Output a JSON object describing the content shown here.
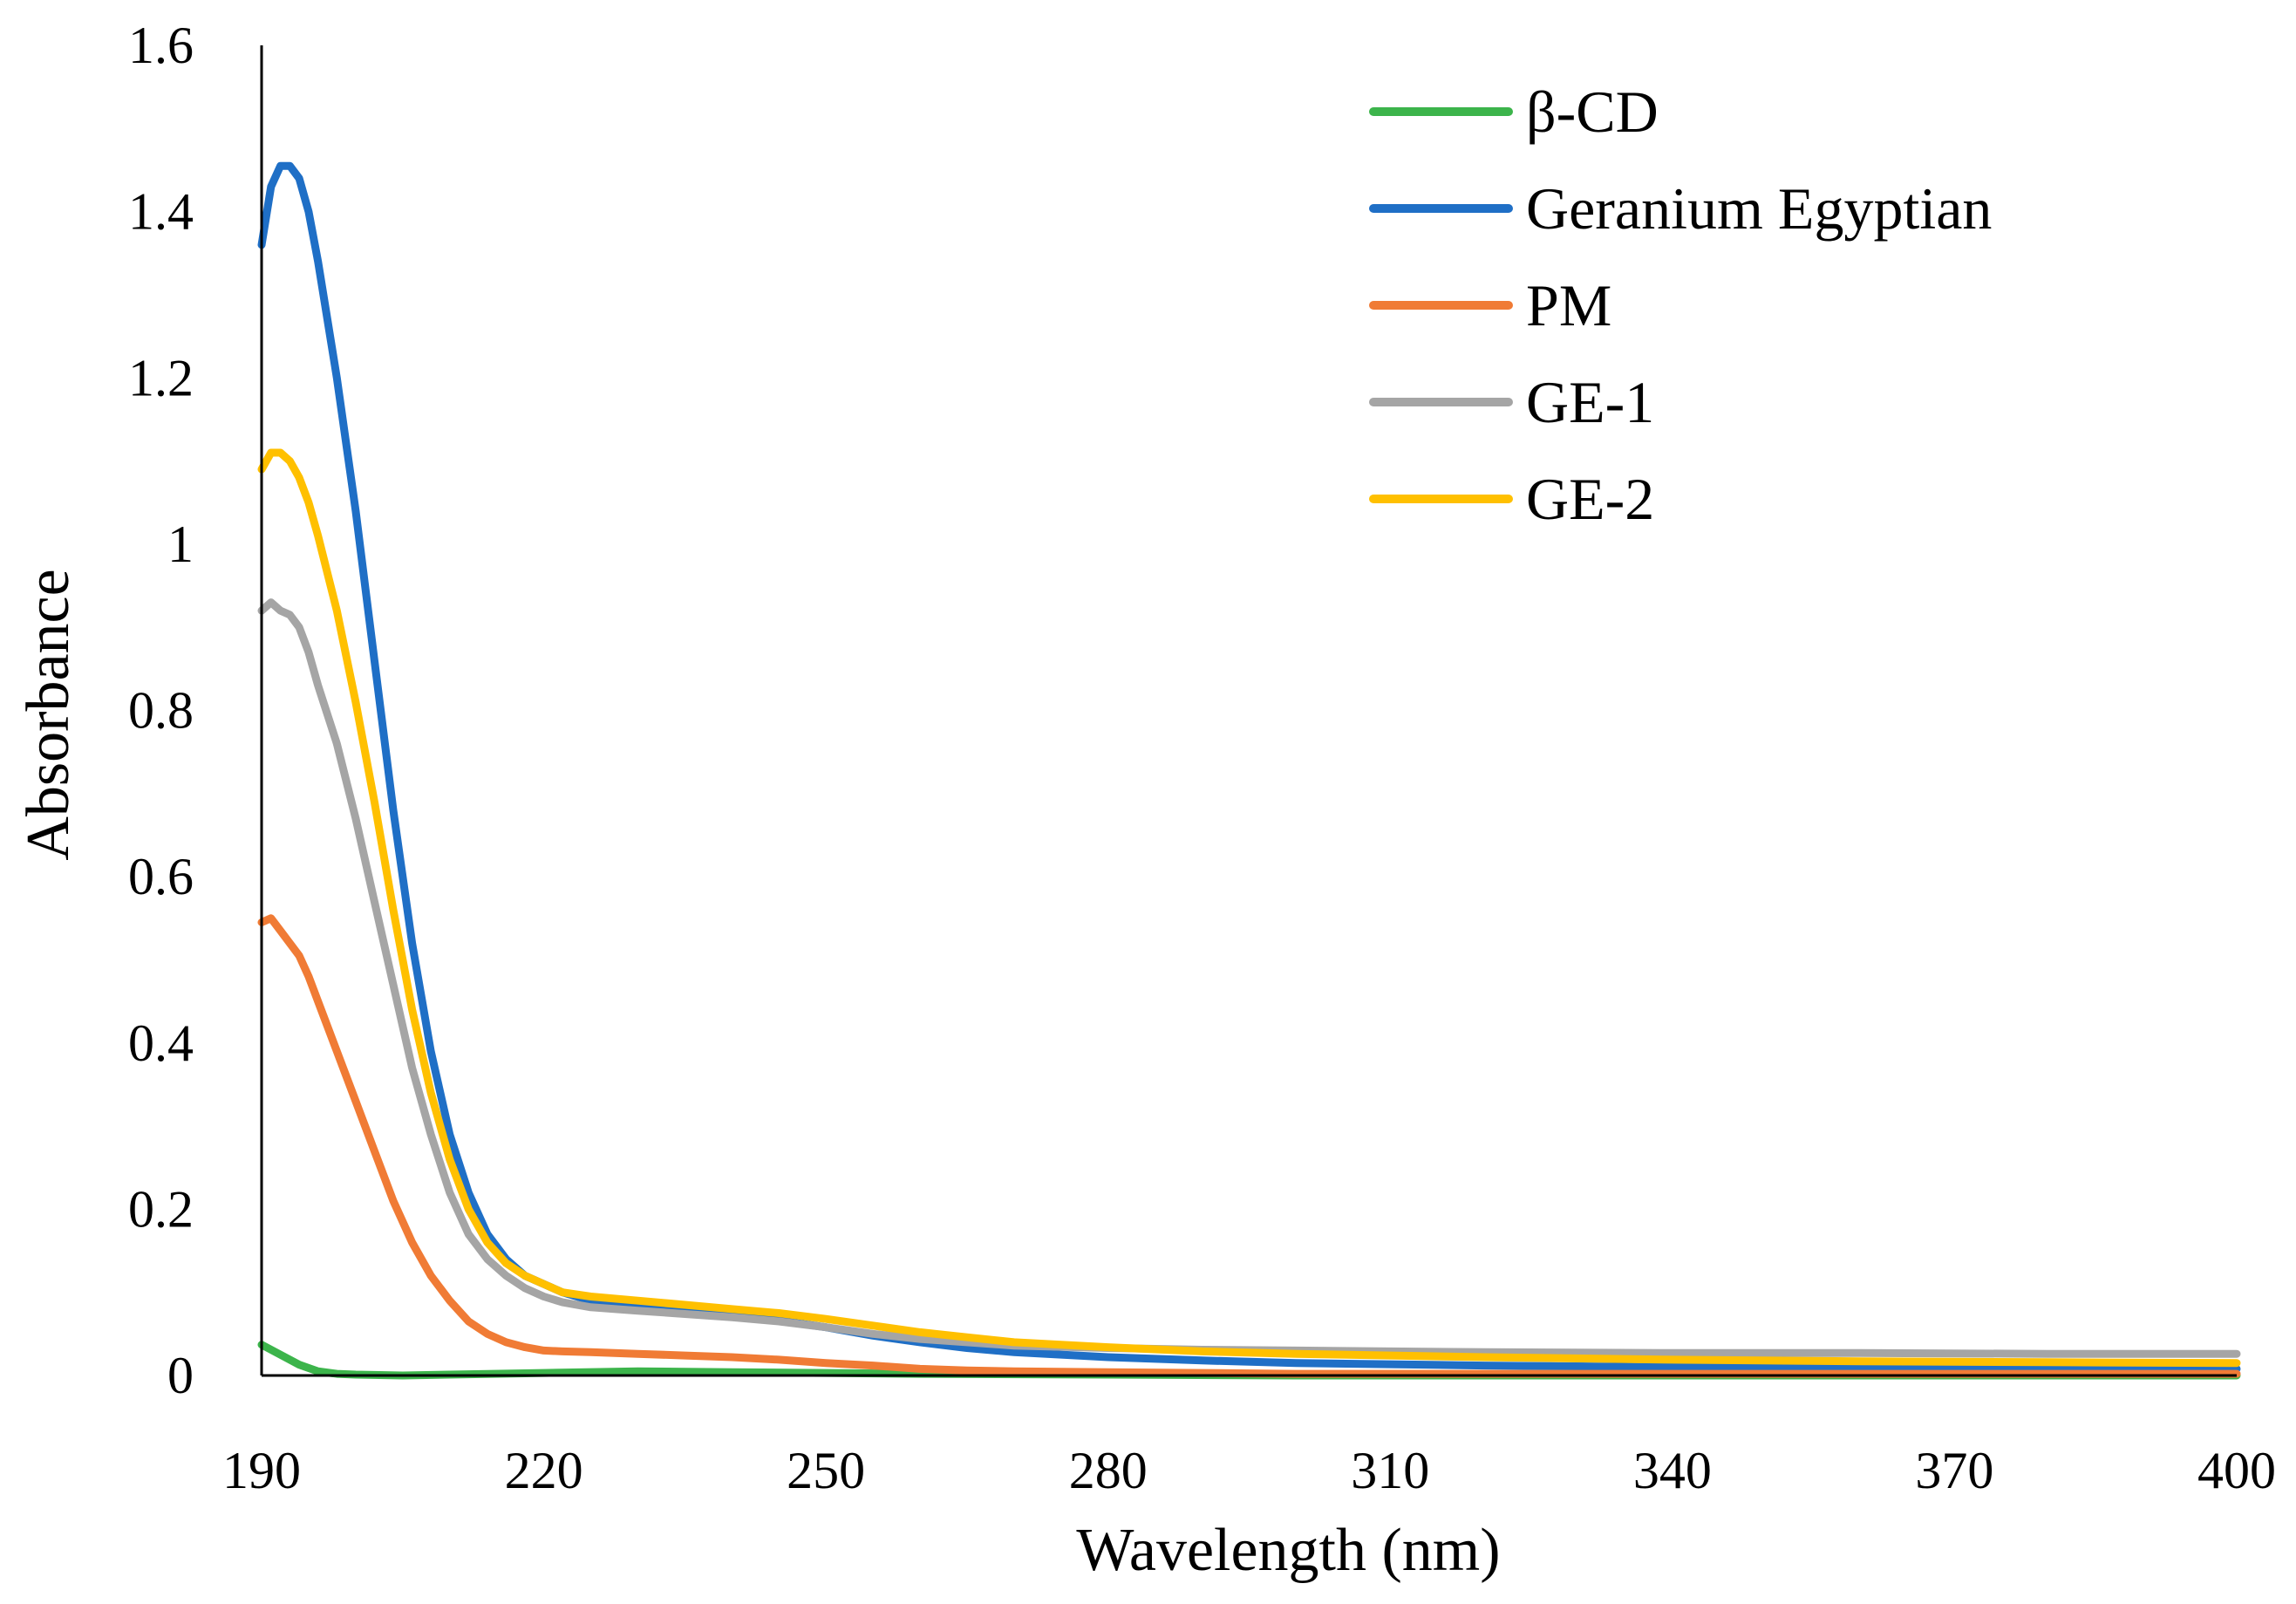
{
  "chart_data": {
    "type": "line",
    "title": "",
    "xlabel": "Wavelength (nm)",
    "ylabel": "Absorbance",
    "xlim": [
      190,
      400
    ],
    "ylim": [
      0,
      1.6
    ],
    "x_ticks": [
      "190",
      "220",
      "250",
      "280",
      "310",
      "340",
      "370",
      "400"
    ],
    "y_ticks": [
      "0",
      "0.2",
      "0.4",
      "0.6",
      "0.8",
      "1",
      "1.2",
      "1.4",
      "1.6"
    ],
    "grid": false,
    "legend_position": "top-right",
    "series": [
      {
        "name": "β-CD",
        "color": "#3cb44b",
        "x": [
          190,
          192,
          194,
          196,
          198,
          200,
          205,
          210,
          220,
          230,
          240,
          250,
          260,
          280,
          300,
          330,
          360,
          400
        ],
        "y": [
          0.037,
          0.025,
          0.013,
          0.005,
          0.002,
          0.001,
          0.0,
          0.001,
          0.003,
          0.005,
          0.004,
          0.003,
          0.002,
          0.001,
          0.0,
          0.0,
          0.0,
          0.0
        ]
      },
      {
        "name": "Geranium Egyptian",
        "color": "#1f6fc6",
        "x": [
          190,
          191,
          192,
          193,
          194,
          195,
          196,
          198,
          200,
          202,
          204,
          206,
          208,
          210,
          212,
          214,
          216,
          218,
          220,
          222,
          225,
          230,
          235,
          240,
          245,
          250,
          255,
          260,
          265,
          270,
          280,
          290,
          300,
          320,
          340,
          360,
          380,
          400
        ],
        "y": [
          1.36,
          1.43,
          1.455,
          1.455,
          1.44,
          1.4,
          1.34,
          1.2,
          1.04,
          0.86,
          0.68,
          0.52,
          0.39,
          0.29,
          0.22,
          0.17,
          0.14,
          0.12,
          0.11,
          0.1,
          0.09,
          0.082,
          0.078,
          0.072,
          0.066,
          0.058,
          0.048,
          0.04,
          0.033,
          0.028,
          0.022,
          0.018,
          0.015,
          0.012,
          0.01,
          0.009,
          0.008,
          0.008
        ]
      },
      {
        "name": "PM",
        "color": "#f07b35",
        "x": [
          190,
          191,
          192,
          193,
          194,
          195,
          196,
          198,
          200,
          202,
          204,
          206,
          208,
          210,
          212,
          214,
          216,
          218,
          220,
          222,
          225,
          230,
          235,
          240,
          245,
          250,
          255,
          260,
          265,
          270,
          280,
          290,
          300,
          320,
          340,
          360,
          380,
          400
        ],
        "y": [
          0.545,
          0.55,
          0.535,
          0.52,
          0.505,
          0.48,
          0.45,
          0.39,
          0.33,
          0.27,
          0.21,
          0.16,
          0.12,
          0.09,
          0.065,
          0.05,
          0.04,
          0.034,
          0.03,
          0.029,
          0.028,
          0.026,
          0.024,
          0.022,
          0.019,
          0.015,
          0.012,
          0.008,
          0.006,
          0.005,
          0.004,
          0.003,
          0.002,
          0.002,
          0.002,
          0.002,
          0.002,
          0.002
        ]
      },
      {
        "name": "GE-1",
        "color": "#a5a5a5",
        "x": [
          190,
          191,
          192,
          193,
          194,
          195,
          196,
          198,
          200,
          202,
          204,
          206,
          208,
          210,
          212,
          214,
          216,
          218,
          220,
          222,
          225,
          230,
          235,
          240,
          245,
          250,
          255,
          260,
          265,
          270,
          280,
          290,
          300,
          320,
          340,
          360,
          380,
          400
        ],
        "y": [
          0.92,
          0.93,
          0.92,
          0.915,
          0.9,
          0.87,
          0.83,
          0.76,
          0.67,
          0.57,
          0.47,
          0.37,
          0.29,
          0.22,
          0.17,
          0.14,
          0.12,
          0.105,
          0.095,
          0.088,
          0.082,
          0.078,
          0.074,
          0.07,
          0.065,
          0.058,
          0.05,
          0.044,
          0.04,
          0.036,
          0.033,
          0.031,
          0.03,
          0.028,
          0.027,
          0.027,
          0.026,
          0.026
        ]
      },
      {
        "name": "GE-2",
        "color": "#ffc000",
        "x": [
          190,
          191,
          192,
          193,
          194,
          195,
          196,
          198,
          200,
          202,
          204,
          206,
          208,
          210,
          212,
          214,
          216,
          218,
          220,
          222,
          225,
          230,
          235,
          240,
          245,
          250,
          255,
          260,
          265,
          270,
          280,
          290,
          300,
          320,
          340,
          360,
          380,
          400
        ],
        "y": [
          1.09,
          1.11,
          1.11,
          1.1,
          1.08,
          1.05,
          1.01,
          0.92,
          0.81,
          0.69,
          0.56,
          0.44,
          0.34,
          0.26,
          0.2,
          0.16,
          0.135,
          0.12,
          0.11,
          0.1,
          0.095,
          0.09,
          0.085,
          0.08,
          0.075,
          0.068,
          0.06,
          0.052,
          0.046,
          0.04,
          0.034,
          0.029,
          0.026,
          0.022,
          0.019,
          0.017,
          0.016,
          0.015
        ]
      }
    ]
  }
}
